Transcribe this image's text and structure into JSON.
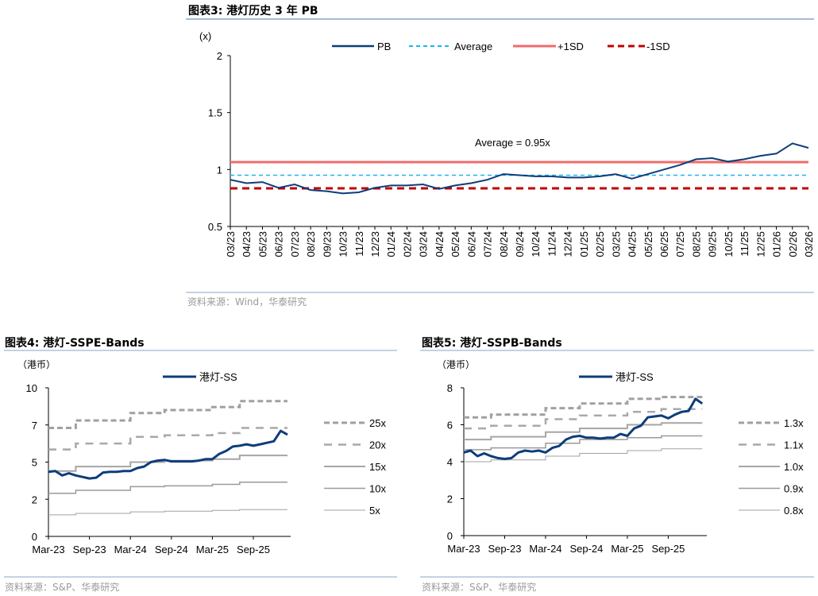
{
  "charts_meta": {
    "fig3_title": "图表3:  港灯历史 3 年 PB",
    "fig3_source": "资料来源：Wind，华泰研究",
    "fig4_title": "图表4:   港灯-SSPE-Bands",
    "fig4_source": "资料来源：S&P、华泰研究",
    "fig5_title": "图表5:   港灯-SSPB-Bands",
    "fig5_source": "资料来源：S&P、华泰研究"
  },
  "chart_data": [
    {
      "type": "line",
      "title": "图表3:  港灯历史 3 年 PB",
      "ylabel": "(x)",
      "ylim": [
        0.5,
        2
      ],
      "yticks": [
        "0.5",
        "1",
        "1.5",
        "2"
      ],
      "ytick_values": [
        0.5,
        1,
        1.5,
        2
      ],
      "categories": [
        "03/23",
        "04/23",
        "05/23",
        "06/23",
        "07/23",
        "08/23",
        "09/23",
        "10/23",
        "11/23",
        "12/23",
        "01/24",
        "02/24",
        "03/24",
        "04/24",
        "05/24",
        "06/24",
        "07/24",
        "08/24",
        "09/24",
        "10/24",
        "11/24",
        "12/24",
        "01/25",
        "02/25",
        "03/25",
        "04/25",
        "05/25",
        "06/25",
        "07/25",
        "08/25",
        "09/25",
        "10/25",
        "11/25",
        "12/25",
        "01/26",
        "02/26",
        "03/26"
      ],
      "series": [
        {
          "name": "PB",
          "color": "#0d3d7a",
          "style": "solid",
          "values": [
            0.91,
            0.88,
            0.89,
            0.84,
            0.87,
            0.82,
            0.81,
            0.79,
            0.8,
            0.84,
            0.86,
            0.86,
            0.87,
            0.83,
            0.86,
            0.88,
            0.91,
            0.96,
            0.95,
            0.94,
            0.94,
            0.93,
            0.93,
            0.94,
            0.96,
            0.92,
            0.96,
            1.0,
            1.04,
            1.09,
            1.1,
            1.07,
            1.09,
            1.12,
            1.14,
            1.23,
            1.19
          ]
        },
        {
          "name": "Average",
          "color": "#1eb4f0",
          "style": "dashed",
          "value": 0.95
        },
        {
          "name": "+1SD",
          "color": "#f26b6b",
          "style": "solid",
          "value": 1.065
        },
        {
          "name": "-1SD",
          "color": "#c00000",
          "style": "dashed",
          "value": 0.835
        }
      ],
      "annotation": "Average = 0.95x",
      "legend": "top"
    },
    {
      "type": "line",
      "title": "图表4:   港灯-SSPE-Bands",
      "ylabel": "（港币）",
      "ylim": [
        0,
        10
      ],
      "yticks": [
        "0",
        "2",
        "5",
        "7",
        "10"
      ],
      "ytick_values": [
        0,
        2.5,
        5,
        7.5,
        10
      ],
      "xticks": [
        "Mar-23",
        "Sep-23",
        "Mar-24",
        "Sep-24",
        "Mar-25",
        "Sep-25"
      ],
      "x": [
        "2023-03",
        "2023-04",
        "2023-05",
        "2023-06",
        "2023-07",
        "2023-08",
        "2023-09",
        "2023-10",
        "2023-11",
        "2023-12",
        "2024-01",
        "2024-02",
        "2024-03",
        "2024-04",
        "2024-05",
        "2024-06",
        "2024-07",
        "2024-08",
        "2024-09",
        "2024-10",
        "2024-11",
        "2024-12",
        "2025-01",
        "2025-02",
        "2025-03",
        "2025-04",
        "2025-05",
        "2025-06",
        "2025-07",
        "2025-08",
        "2025-09",
        "2025-10",
        "2025-11",
        "2025-12",
        "2026-01",
        "2026-02"
      ],
      "series": [
        {
          "name": "港灯-SS",
          "color": "#0d3d7a",
          "values": [
            4.35,
            4.4,
            4.1,
            4.25,
            4.1,
            4.0,
            3.9,
            3.95,
            4.3,
            4.35,
            4.35,
            4.4,
            4.4,
            4.6,
            4.7,
            5.0,
            5.1,
            5.15,
            5.05,
            5.05,
            5.05,
            5.05,
            5.1,
            5.2,
            5.2,
            5.55,
            5.75,
            6.05,
            6.1,
            6.2,
            6.1,
            6.2,
            6.3,
            6.4,
            7.1,
            6.85
          ]
        }
      ],
      "band_dates": [
        "2023-03",
        "2023-07",
        "2024-03",
        "2024-08",
        "2025-03",
        "2025-07"
      ],
      "bands": [
        {
          "name": "25x",
          "style": "short-dash",
          "values": [
            7.3,
            7.8,
            8.3,
            8.5,
            8.7,
            9.1
          ]
        },
        {
          "name": "20x",
          "style": "long-dash",
          "values": [
            5.85,
            6.25,
            6.7,
            6.8,
            6.95,
            7.3
          ]
        },
        {
          "name": "15x",
          "style": "solid-thick",
          "values": [
            4.4,
            4.7,
            5.0,
            5.1,
            5.2,
            5.45
          ]
        },
        {
          "name": "10x",
          "style": "solid",
          "values": [
            2.9,
            3.1,
            3.35,
            3.4,
            3.5,
            3.65
          ]
        },
        {
          "name": "5x",
          "style": "solid-thin",
          "values": [
            1.45,
            1.55,
            1.65,
            1.7,
            1.75,
            1.8
          ]
        }
      ],
      "legend": "right"
    },
    {
      "type": "line",
      "title": "图表5:   港灯-SSPB-Bands",
      "ylabel": "（港币）",
      "ylim": [
        0,
        8
      ],
      "yticks": [
        "0",
        "2",
        "4",
        "6",
        "8"
      ],
      "ytick_values": [
        0,
        2,
        4,
        6,
        8
      ],
      "xticks": [
        "Mar-23",
        "Sep-23",
        "Mar-24",
        "Sep-24",
        "Mar-25",
        "Sep-25"
      ],
      "x": [
        "2023-03",
        "2023-04",
        "2023-05",
        "2023-06",
        "2023-07",
        "2023-08",
        "2023-09",
        "2023-10",
        "2023-11",
        "2023-12",
        "2024-01",
        "2024-02",
        "2024-03",
        "2024-04",
        "2024-05",
        "2024-06",
        "2024-07",
        "2024-08",
        "2024-09",
        "2024-10",
        "2024-11",
        "2024-12",
        "2025-01",
        "2025-02",
        "2025-03",
        "2025-04",
        "2025-05",
        "2025-06",
        "2025-07",
        "2025-08",
        "2025-09",
        "2025-10",
        "2025-11",
        "2025-12",
        "2026-01",
        "2026-02"
      ],
      "series": [
        {
          "name": "港灯-SS",
          "color": "#0d3d7a",
          "values": [
            4.5,
            4.6,
            4.3,
            4.45,
            4.3,
            4.2,
            4.15,
            4.2,
            4.5,
            4.6,
            4.55,
            4.6,
            4.5,
            4.75,
            4.85,
            5.2,
            5.35,
            5.4,
            5.3,
            5.3,
            5.25,
            5.3,
            5.3,
            5.5,
            5.4,
            5.8,
            5.95,
            6.4,
            6.45,
            6.5,
            6.35,
            6.55,
            6.7,
            6.75,
            7.4,
            7.15
          ]
        }
      ],
      "band_dates": [
        "2023-03",
        "2023-07",
        "2024-03",
        "2024-08",
        "2025-03",
        "2025-08"
      ],
      "bands": [
        {
          "name": "1.3x",
          "style": "short-dash",
          "values": [
            6.4,
            6.55,
            6.9,
            7.15,
            7.4,
            7.5
          ]
        },
        {
          "name": "1.1x",
          "style": "long-dash",
          "values": [
            5.8,
            5.95,
            6.3,
            6.5,
            6.7,
            6.85
          ]
        },
        {
          "name": "1.0x",
          "style": "solid-thick",
          "values": [
            5.2,
            5.35,
            5.6,
            5.8,
            6.0,
            6.1
          ]
        },
        {
          "name": "0.9x",
          "style": "solid",
          "values": [
            4.65,
            4.75,
            5.0,
            5.2,
            5.3,
            5.4
          ]
        },
        {
          "name": "0.8x",
          "style": "solid-thin",
          "values": [
            4.0,
            4.1,
            4.3,
            4.45,
            4.6,
            4.7
          ]
        }
      ],
      "legend": "right"
    }
  ]
}
